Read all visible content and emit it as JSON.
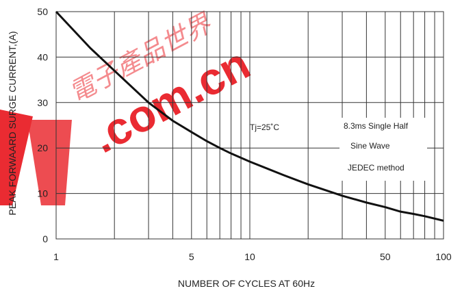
{
  "chart_data": {
    "type": "line",
    "title": "",
    "xlabel": "NUMBER OF CYCLES AT 60Hz",
    "ylabel": "PEAK FORWAARD SURGE CURRENT,(A)",
    "xscale": "log",
    "xlim": [
      1,
      100
    ],
    "ylim": [
      0,
      50
    ],
    "grid": true,
    "x_ticks": [
      1,
      5,
      10,
      50,
      100
    ],
    "x_tick_labels": [
      "1",
      "5",
      "10",
      "50",
      "100"
    ],
    "y_ticks": [
      0,
      10,
      20,
      30,
      40,
      50
    ],
    "y_tick_labels": [
      "0",
      "10",
      "20",
      "30",
      "40",
      "50"
    ],
    "series": [
      {
        "x": [
          1,
          1.5,
          2,
          3,
          4,
          5,
          6,
          7,
          8,
          10,
          15,
          20,
          30,
          40,
          50,
          60,
          70,
          80,
          100
        ],
        "y": [
          50,
          42,
          37,
          30,
          26,
          23.5,
          21.5,
          20,
          18.8,
          17,
          14,
          12,
          9.5,
          8,
          7,
          6,
          5.5,
          5,
          4
        ],
        "color": "#111111"
      }
    ],
    "annotations": [
      {
        "text": "Tj=25˚C"
      },
      {
        "text": "8.3ms Single Half"
      },
      {
        "text": "Sine Wave"
      },
      {
        "text": "JEDEC method"
      }
    ]
  },
  "watermark": {
    "text": ".com.cn",
    "chars": "電子產品世界",
    "color": "#e8141b"
  }
}
